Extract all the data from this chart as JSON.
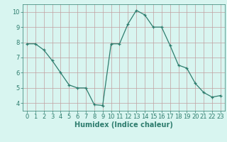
{
  "x": [
    0,
    1,
    2,
    3,
    4,
    5,
    6,
    7,
    8,
    9,
    10,
    11,
    12,
    13,
    14,
    15,
    16,
    17,
    18,
    19,
    20,
    21,
    22,
    23
  ],
  "y": [
    7.9,
    7.9,
    7.5,
    6.8,
    6.0,
    5.2,
    5.0,
    5.0,
    3.9,
    3.85,
    7.9,
    7.9,
    9.2,
    10.1,
    9.8,
    9.0,
    9.0,
    7.8,
    6.5,
    6.3,
    5.3,
    4.7,
    4.4,
    4.5
  ],
  "line_color": "#2e7d6e",
  "marker": "+",
  "bg_color": "#d8f5f0",
  "grid_color": "#c0a0a0",
  "xlabel": "Humidex (Indice chaleur)",
  "xlim_lo": -0.5,
  "xlim_hi": 23.5,
  "ylim_lo": 3.5,
  "ylim_hi": 10.5,
  "yticks": [
    4,
    5,
    6,
    7,
    8,
    9,
    10
  ],
  "xticks": [
    0,
    1,
    2,
    3,
    4,
    5,
    6,
    7,
    8,
    9,
    10,
    11,
    12,
    13,
    14,
    15,
    16,
    17,
    18,
    19,
    20,
    21,
    22,
    23
  ],
  "tick_fontsize": 6,
  "xlabel_fontsize": 7
}
